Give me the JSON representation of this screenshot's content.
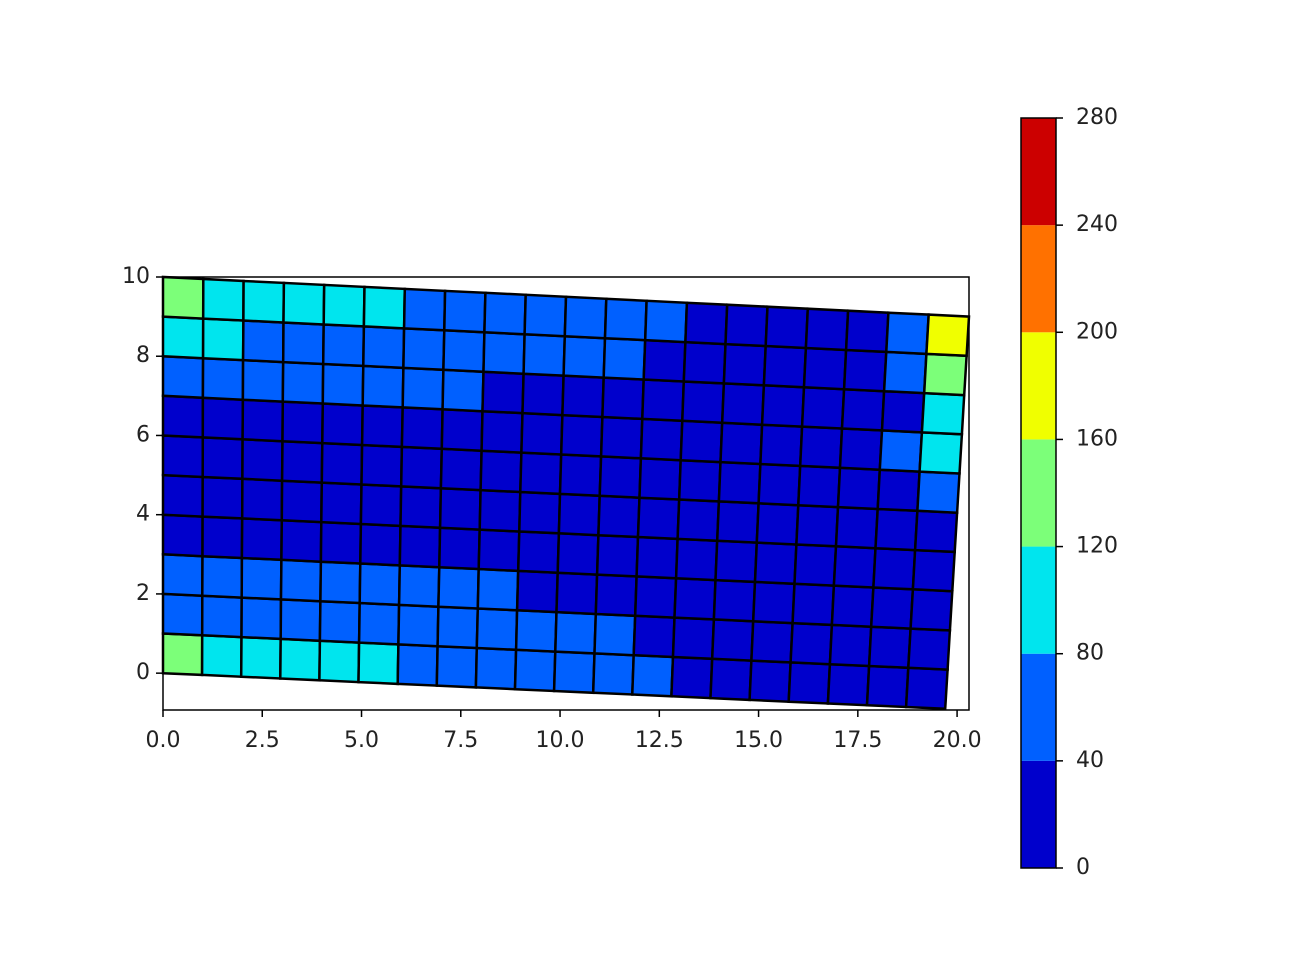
{
  "chart_data": {
    "type": "mesh-contour",
    "xlim": [
      0,
      20.3
    ],
    "ylim": [
      -0.93,
      10
    ],
    "xticks": [
      {
        "value": 0,
        "label": "0.0"
      },
      2.5,
      {
        "value": 5,
        "label": "5.0"
      },
      7.5,
      {
        "value": 10,
        "label": "10.0"
      },
      12.5,
      {
        "value": 15,
        "label": "15.0"
      },
      17.5,
      {
        "value": 20,
        "label": "20.0"
      }
    ],
    "yticks": [
      0,
      2,
      4,
      6,
      8,
      10
    ],
    "mesh_corners": [
      [
        0,
        0
      ],
      [
        19.7,
        -0.9
      ],
      [
        20.3,
        9.0
      ],
      [
        0,
        10
      ]
    ],
    "cells": [
      [
        130,
        100,
        100,
        100,
        100,
        90,
        60,
        60,
        60,
        60,
        60,
        60,
        60,
        20,
        20,
        20,
        20,
        20,
        20,
        20
      ],
      [
        60,
        60,
        60,
        60,
        60,
        60,
        60,
        60,
        60,
        60,
        60,
        60,
        20,
        20,
        20,
        20,
        20,
        20,
        20,
        20
      ],
      [
        60,
        60,
        60,
        60,
        60,
        60,
        60,
        60,
        60,
        20,
        20,
        20,
        20,
        20,
        20,
        20,
        20,
        20,
        20,
        20
      ],
      [
        20,
        20,
        20,
        20,
        20,
        20,
        20,
        20,
        20,
        20,
        20,
        20,
        20,
        20,
        20,
        20,
        20,
        20,
        20,
        20
      ],
      [
        20,
        20,
        20,
        20,
        20,
        20,
        20,
        20,
        20,
        20,
        20,
        20,
        20,
        20,
        20,
        20,
        20,
        20,
        20,
        20
      ],
      [
        20,
        20,
        20,
        20,
        20,
        20,
        20,
        20,
        20,
        20,
        20,
        20,
        20,
        20,
        20,
        20,
        20,
        20,
        20,
        50
      ],
      [
        20,
        20,
        20,
        20,
        20,
        20,
        20,
        20,
        20,
        20,
        20,
        20,
        20,
        20,
        20,
        20,
        20,
        20,
        50,
        90
      ],
      [
        60,
        60,
        60,
        60,
        60,
        60,
        60,
        60,
        20,
        20,
        20,
        20,
        20,
        20,
        20,
        20,
        20,
        20,
        20,
        90
      ],
      [
        90,
        90,
        60,
        60,
        60,
        60,
        60,
        60,
        60,
        60,
        60,
        60,
        20,
        20,
        20,
        20,
        20,
        20,
        60,
        130
      ],
      [
        130,
        100,
        100,
        100,
        100,
        90,
        60,
        60,
        60,
        60,
        60,
        60,
        60,
        20,
        20,
        20,
        20,
        20,
        60,
        170
      ]
    ],
    "colorbar": {
      "levels": [
        0,
        40,
        80,
        120,
        160,
        200,
        240,
        280
      ],
      "colors": [
        "#0000cc",
        "#0060ff",
        "#00e5ee",
        "#7cff79",
        "#f0ff00",
        "#ff7100",
        "#cc0000"
      ]
    }
  }
}
